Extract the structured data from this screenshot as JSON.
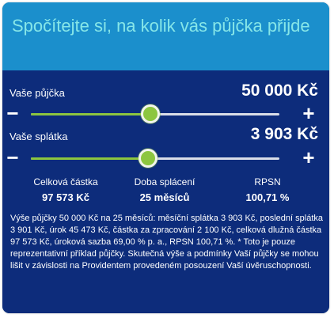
{
  "header": {
    "title": "Spočítejte si, na kolik vás půjčka přijde"
  },
  "loan": {
    "label": "Vaše půjčka",
    "value": "50 000 Kč",
    "minus": "−",
    "plus": "+",
    "slider_fraction": 0.48
  },
  "payment": {
    "label": "Vaše splátka",
    "value": "3 903 Kč",
    "minus": "−",
    "plus": "+",
    "slider_fraction": 0.47
  },
  "summary": {
    "total_label": "Celková částka",
    "total_value": "97 573 Kč",
    "duration_label": "Doba splácení",
    "duration_value": "25 měsíců",
    "rpsn_label": "RPSN",
    "rpsn_value": "100,71 %"
  },
  "disclaimer": "Výše půjčky 50 000 Kč na 25 měsíců: měsíční splátka 3 903 Kč, poslední splátka 3 901 Kč, úrok 45 473 Kč, částka za zpracování 2 100 Kč, celková dlužná částka 97 573 Kč, úroková sazba 69,00 % p. a., RPSN 100,71 %. * Toto je pouze reprezentativní příklad půjčky. Skutečná výše a podmínky Vaší půjčky se mohou lišit v závislosti na Providentem provedeném posouzení Vaší úvěruschopnosti.",
  "colors": {
    "header_bg": "#1b8fcc",
    "panel_bg": "#0d2c7b",
    "title_text": "#86e6e8",
    "slider_fill": "#8cc63f",
    "slider_track": "#d9dee8"
  }
}
